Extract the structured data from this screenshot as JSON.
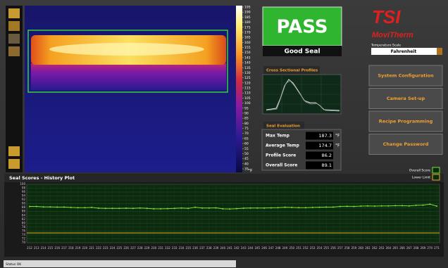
{
  "thermal_scale": {
    "ticks": [
      195,
      190,
      185,
      180,
      175,
      170,
      165,
      160,
      155,
      150,
      145,
      140,
      135,
      130,
      125,
      120,
      115,
      110,
      105,
      100,
      95,
      90,
      85,
      80,
      75,
      70,
      65,
      60,
      55,
      50,
      45,
      40,
      35
    ],
    "unit": "°F"
  },
  "result": {
    "status": "PASS",
    "description": "Good Seal"
  },
  "logo": {
    "brand": "TSI",
    "product": "MoviTherm"
  },
  "temperature_scale": {
    "label": "Temperature Scale",
    "selected": "Fahrenheit"
  },
  "buttons": [
    "System Configuration",
    "Camera Set-up",
    "Recipe Programming",
    "Change Password"
  ],
  "cross_section": {
    "title": "Cross Sectional Profiles"
  },
  "seal_evaluation": {
    "title": "Seal Evaluation",
    "rows": [
      {
        "label": "Max Temp",
        "value": 187.3,
        "unit": "°F"
      },
      {
        "label": "Average Temp",
        "value": 174.7,
        "unit": "°F"
      },
      {
        "label": "Profile Score",
        "value": 86.2
      },
      {
        "label": "Overall Score",
        "value": 89.1
      }
    ]
  },
  "status_bar": "Status OK",
  "chart_data": {
    "type": "line",
    "title": "Seal Scores - History Plot",
    "categories": [
      "212",
      "213",
      "214",
      "215",
      "216",
      "217",
      "218",
      "219",
      "220",
      "221",
      "222",
      "223",
      "224",
      "225",
      "226",
      "227",
      "228",
      "229",
      "230",
      "231",
      "232",
      "233",
      "234",
      "235",
      "236",
      "237",
      "238",
      "239",
      "240",
      "241",
      "242",
      "243",
      "244",
      "245",
      "246",
      "247",
      "248",
      "249",
      "250",
      "251",
      "252",
      "253",
      "254",
      "255",
      "256",
      "257",
      "258",
      "259",
      "260",
      "261",
      "262",
      "263",
      "264",
      "265",
      "266",
      "267",
      "268",
      "269",
      "270",
      "271"
    ],
    "series": [
      {
        "name": "Overall Score",
        "color": "#7be03a",
        "values": [
          88.6,
          88.6,
          88.4,
          88.4,
          88.3,
          88.3,
          88.1,
          88.0,
          88.0,
          88.1,
          87.7,
          87.6,
          87.6,
          87.6,
          87.7,
          87.6,
          87.8,
          87.6,
          87.4,
          87.4,
          87.5,
          87.6,
          87.8,
          87.6,
          88.2,
          87.8,
          87.8,
          87.9,
          87.4,
          87.3,
          87.5,
          87.7,
          87.8,
          87.8,
          87.8,
          87.9,
          88.0,
          88.2,
          88.1,
          88.0,
          88.0,
          88.1,
          88.2,
          88.3,
          88.3,
          88.6,
          88.7,
          88.6,
          88.8,
          88.9,
          88.8,
          88.9,
          88.9,
          89.0,
          89.0,
          88.9,
          89.2,
          89.3,
          89.8,
          88.8
        ]
      }
    ],
    "lower_limit": {
      "name": "Lower Limit",
      "value": 75,
      "color": "#e8b020"
    },
    "ylim": [
      70,
      100
    ],
    "yticks": [
      70,
      72,
      74,
      76,
      78,
      80,
      82,
      84,
      86,
      88,
      90,
      92,
      94,
      96,
      98,
      100
    ],
    "grid": true
  }
}
